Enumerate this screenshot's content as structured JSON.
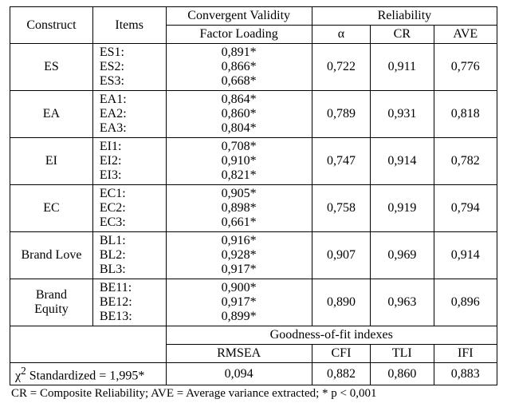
{
  "header": {
    "construct": "Construct",
    "items": "Items",
    "convergent": "Convergent Validity",
    "reliability": "Reliability",
    "factor_loading": "Factor Loading",
    "alpha": "α",
    "cr": "CR",
    "ave": "AVE"
  },
  "rows": [
    {
      "construct": "ES",
      "items": [
        "ES1:",
        "ES2:",
        "ES3:"
      ],
      "loadings": [
        "0,891*",
        "0,866*",
        "0,668*"
      ],
      "alpha": "0,722",
      "cr": "0,911",
      "ave": "0,776"
    },
    {
      "construct": "EA",
      "items": [
        "EA1:",
        "EA2:",
        "EA3:"
      ],
      "loadings": [
        "0,864*",
        "0,860*",
        "0,804*"
      ],
      "alpha": "0,789",
      "cr": "0,931",
      "ave": "0,818"
    },
    {
      "construct": "EI",
      "items": [
        "EI1:",
        "EI2:",
        "EI3:"
      ],
      "loadings": [
        "0,708*",
        "0,910*",
        "0,821*"
      ],
      "alpha": "0,747",
      "cr": "0,914",
      "ave": "0,782"
    },
    {
      "construct": "EC",
      "items": [
        "EC1:",
        "EC2:",
        "EC3:"
      ],
      "loadings": [
        "0,905*",
        "0,898*",
        "0,661*"
      ],
      "alpha": "0,758",
      "cr": "0,919",
      "ave": "0,794"
    },
    {
      "construct": "Brand Love",
      "items": [
        "BL1:",
        "BL2:",
        "BL3:"
      ],
      "loadings": [
        "0,916*",
        "0,928*",
        "0,917*"
      ],
      "alpha": "0,907",
      "cr": "0,969",
      "ave": "0,914"
    },
    {
      "construct": "Brand Equity",
      "items": [
        "BE11:",
        "BE12:",
        "BE13:"
      ],
      "loadings": [
        "0,900*",
        "0,917*",
        "0,899*"
      ],
      "alpha": "0,890",
      "cr": "0,963",
      "ave": "0,896"
    }
  ],
  "gof": {
    "title": "Goodness-of-fit indexes",
    "labels": {
      "rmsea": "RMSEA",
      "cfi": "CFI",
      "tli": "TLI",
      "ifi": "IFI"
    },
    "chi2_label": "χ² Standardized = 1,995*",
    "chi2_html": "χ<sup>2</sup> Standardized = 1,995*",
    "values": {
      "rmsea": "0,094",
      "cfi": "0,882",
      "tli": "0,860",
      "ifi": "0,883"
    }
  },
  "footnote": "CR = Composite Reliability; AVE = Average variance extracted; * p < 0,001",
  "style": {
    "col_widths_pct": [
      17,
      15,
      30,
      12,
      13,
      13
    ],
    "font_family": "Times New Roman",
    "font_size_pt": 12,
    "border_color": "#000000",
    "background_color": "#ffffff",
    "text_color": "#000000"
  }
}
